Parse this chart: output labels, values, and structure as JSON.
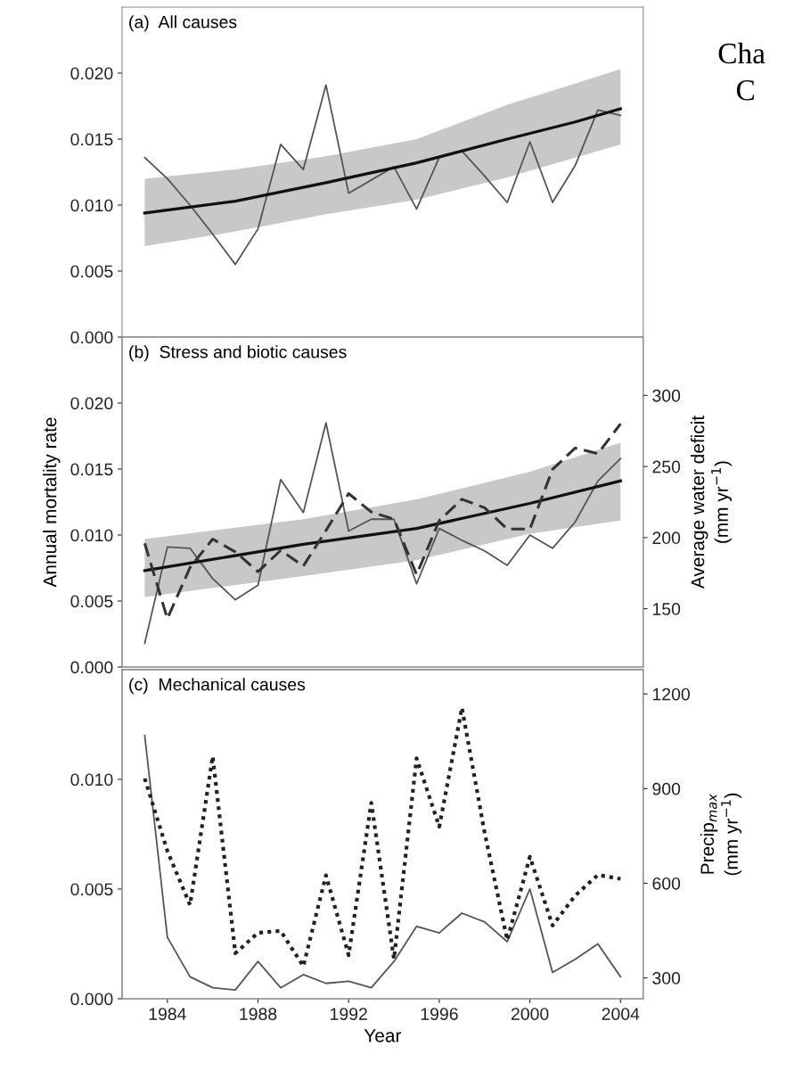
{
  "chart_data": [
    {
      "type": "line",
      "title": "(a)  All causes",
      "x": [
        1983,
        1984,
        1985,
        1986,
        1987,
        1988,
        1989,
        1990,
        1991,
        1992,
        1993,
        1994,
        1995,
        1996,
        1997,
        1998,
        1999,
        2000,
        2001,
        2002,
        2003,
        2004
      ],
      "xlim": [
        1982,
        2005
      ],
      "ylim": [
        0,
        0.025
      ],
      "yticks": [
        {
          "value": 0,
          "label": "0.000"
        },
        {
          "value": 0.005,
          "label": "0.005"
        },
        {
          "value": 0.01,
          "label": "0.010"
        },
        {
          "value": 0.015,
          "label": "0.015"
        },
        {
          "value": 0.02,
          "label": "0.020"
        }
      ],
      "tick_labels": "y",
      "series": [
        {
          "color": "#555555",
          "line_style": "solid",
          "values": [
            0.0136,
            0.012,
            0.01,
            0.0078,
            0.0055,
            0.0082,
            0.0146,
            0.0127,
            0.0191,
            0.0109,
            0.0119,
            0.0129,
            0.0097,
            0.0136,
            0.0141,
            0.0122,
            0.0102,
            0.0148,
            0.0102,
            0.013,
            0.0172,
            0.0168
          ]
        },
        {
          "type": "line",
          "color": "#111111",
          "line_style": "solid",
          "x": [
            1983,
            1987,
            1991,
            1995,
            1999,
            2002,
            2004
          ],
          "values": [
            0.0094,
            0.0103,
            0.0117,
            0.0132,
            0.015,
            0.0163,
            0.0173
          ],
          "lower": [
            0.0069,
            0.008,
            0.0093,
            0.0104,
            0.0121,
            0.0136,
            0.0146
          ],
          "upper": [
            0.012,
            0.0127,
            0.0137,
            0.015,
            0.0176,
            0.0192,
            0.0203
          ]
        }
      ],
      "annotations": [
        "Cha",
        "C"
      ]
    },
    {
      "type": "line",
      "title": "(b)  Stress and biotic causes",
      "ylabel": "Annual mortality rate",
      "y2label": "Average water deficit\n(mm yr$^{−1}$)",
      "x": [
        1983,
        1984,
        1985,
        1986,
        1987,
        1988,
        1989,
        1990,
        1991,
        1992,
        1993,
        1994,
        1995,
        1996,
        1997,
        1998,
        1999,
        2000,
        2001,
        2002,
        2003,
        2004
      ],
      "xlim": [
        1982,
        2005
      ],
      "ylim": [
        0,
        0.025
      ],
      "yticks": [
        {
          "value": 0,
          "label": "0.000"
        },
        {
          "value": 0.005,
          "label": "0.005"
        },
        {
          "value": 0.01,
          "label": "0.010"
        },
        {
          "value": 0.015,
          "label": "0.015"
        },
        {
          "value": 0.02,
          "label": "0.020"
        }
      ],
      "y2lim": [
        109,
        341
      ],
      "y2ticks": [
        150,
        200,
        250,
        300
      ],
      "tick_labels": "y",
      "series": [
        {
          "color": "#555555",
          "line_style": "solid",
          "values": [
            0.0018,
            0.0091,
            0.009,
            0.0067,
            0.0051,
            0.0062,
            0.0142,
            0.0117,
            0.0185,
            0.0103,
            0.0112,
            0.0112,
            0.0063,
            0.0105,
            0.0096,
            0.0088,
            0.0077,
            0.01,
            0.009,
            0.011,
            0.0141,
            0.0158
          ]
        },
        {
          "color": "#333333",
          "line_style": "dashed",
          "axis": "y2",
          "values": [
            196,
            143,
            179,
            199,
            190,
            176,
            191,
            180,
            205,
            231,
            218,
            213,
            174,
            212,
            227,
            221,
            206,
            206,
            248,
            263,
            259,
            280
          ]
        },
        {
          "type": "line",
          "color": "#111111",
          "line_style": "solid",
          "x": [
            1983,
            1990,
            1995,
            2000,
            2004
          ],
          "values": [
            0.0073,
            0.0093,
            0.0105,
            0.0124,
            0.0141
          ],
          "lower": [
            0.0053,
            0.0069,
            0.0081,
            0.0101,
            0.0111
          ],
          "upper": [
            0.0097,
            0.0112,
            0.0127,
            0.0148,
            0.017
          ]
        }
      ]
    },
    {
      "type": "line",
      "title": "(c)  Mechanical causes",
      "xlabel": "Year",
      "y2label": "Precip$_{max}$\n(mm yr$^{−1}$)",
      "x": [
        1983,
        1984,
        1985,
        1986,
        1987,
        1988,
        1989,
        1990,
        1991,
        1992,
        1993,
        1994,
        1995,
        1996,
        1997,
        1998,
        1999,
        2000,
        2001,
        2002,
        2003,
        2004
      ],
      "xlim": [
        1982,
        2005
      ],
      "xticks": [
        1984,
        1988,
        1992,
        1996,
        2000,
        2004
      ],
      "ylim": [
        0,
        0.015
      ],
      "yticks": [
        {
          "value": 0,
          "label": "0.000"
        },
        {
          "value": 0.005,
          "label": "0.005"
        },
        {
          "value": 0.01,
          "label": "0.010"
        }
      ],
      "y2lim": [
        234,
        1277
      ],
      "y2ticks": [
        300,
        600,
        900,
        1200
      ],
      "series": [
        {
          "color": "#555555",
          "line_style": "solid",
          "values": [
            0.012,
            0.0028,
            0.001,
            0.0005,
            0.0004,
            0.0017,
            0.0005,
            0.0011,
            0.0007,
            0.0008,
            0.0005,
            0.0017,
            0.0033,
            0.003,
            0.0039,
            0.0035,
            0.0026,
            0.005,
            0.0012,
            0.0018,
            0.0025,
            0.001
          ]
        },
        {
          "color": "#222222",
          "line_style": "dotted",
          "axis": "y2",
          "values": [
            932,
            702,
            531,
            1002,
            378,
            443,
            449,
            337,
            625,
            372,
            855,
            360,
            996,
            779,
            1156,
            761,
            420,
            684,
            466,
            561,
            626,
            614
          ]
        }
      ]
    }
  ]
}
